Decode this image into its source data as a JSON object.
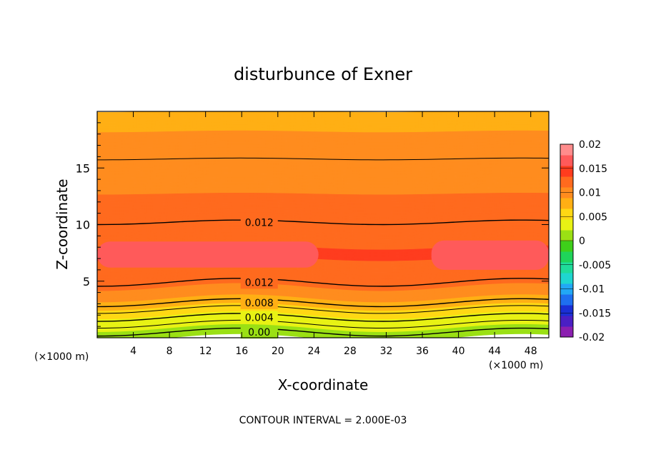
{
  "chart_data": {
    "type": "heatmap",
    "title": "disturbunce of Exner",
    "xlabel": "X-coordinate",
    "ylabel": "Z-coordinate",
    "x_unit_label": "(×1000 m)",
    "x_unit_label_right": "(×1000 m)",
    "footer": "CONTOUR INTERVAL = 2.000E-03",
    "xlim": [
      0,
      50
    ],
    "ylim": [
      0,
      20
    ],
    "x_ticks": [
      4,
      8,
      12,
      16,
      20,
      24,
      28,
      32,
      36,
      40,
      44,
      48
    ],
    "x_tick_labels": [
      "4",
      "8",
      "12",
      "16",
      "20",
      "24",
      "28",
      "32",
      "36",
      "40",
      "44",
      "48"
    ],
    "y_ticks": [
      5,
      10,
      15
    ],
    "y_tick_labels": [
      "5",
      "10",
      "15"
    ],
    "contour_interval": 0.002,
    "contour_labels": [
      {
        "text": "0.012",
        "x": 16.2,
        "z": 10.2
      },
      {
        "text": "0.012",
        "x": 16.2,
        "z": 4.9
      },
      {
        "text": "0.008",
        "x": 16.2,
        "z": 3.1
      },
      {
        "text": "0.004",
        "x": 16.2,
        "z": 1.8
      },
      {
        "text": "0.00",
        "x": 16.2,
        "z": 0.5
      }
    ],
    "colorbar": {
      "min": -0.02,
      "max": 0.02,
      "tick_labels": [
        "0.02",
        "0.015",
        "0.01",
        "0.005",
        "0",
        "-0.005",
        "-0.01",
        "-0.015",
        "-0.02"
      ],
      "tick_values": [
        0.02,
        0.015,
        0.01,
        0.005,
        0,
        -0.005,
        -0.01,
        -0.015,
        -0.02
      ],
      "colors_low_to_high": [
        "#8b1fb0",
        "#4a1fc4",
        "#1a2fd6",
        "#1e6ff0",
        "#22a8f5",
        "#1fd6d0",
        "#1fdc9a",
        "#1fd45a",
        "#3ecf1a",
        "#9be014",
        "#e8f214",
        "#ffd814",
        "#ffaf14",
        "#ff8c1e",
        "#ff6a1e",
        "#ff3c1e",
        "#ff5a5a",
        "#ff8c8c"
      ]
    },
    "profile": [
      {
        "z": 0.0,
        "value": 0.0
      },
      {
        "z": 0.5,
        "value": 0.001
      },
      {
        "z": 1.2,
        "value": 0.003
      },
      {
        "z": 1.8,
        "value": 0.004
      },
      {
        "z": 2.5,
        "value": 0.006
      },
      {
        "z": 3.1,
        "value": 0.008
      },
      {
        "z": 4.0,
        "value": 0.01
      },
      {
        "z": 4.9,
        "value": 0.012
      },
      {
        "z": 6.0,
        "value": 0.013
      },
      {
        "z": 7.5,
        "value": 0.0135
      },
      {
        "z": 9.0,
        "value": 0.013
      },
      {
        "z": 10.2,
        "value": 0.012
      },
      {
        "z": 13.0,
        "value": 0.011
      },
      {
        "z": 15.8,
        "value": 0.01
      },
      {
        "z": 18.0,
        "value": 0.009
      },
      {
        "z": 20.0,
        "value": 0.008
      }
    ]
  }
}
